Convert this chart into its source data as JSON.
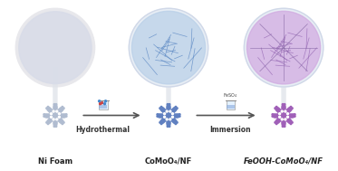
{
  "bg_color": "#f0f0f0",
  "title": "",
  "labels": {
    "label1": "Ni Foam",
    "label2": "CoMoO₄/NF",
    "label3": "FeOOH-CoMoO₄/NF"
  },
  "step_labels": {
    "step1": "Hydrothermal",
    "step2": "Immersion"
  },
  "arrow_color": "#555555",
  "sphere1_color": "#dce8f5",
  "sphere2_color": "#b8cfe8",
  "sphere3_color": "#d4b8e0",
  "foam1_color": "#b0c8e0",
  "foam2_color": "#7090c0",
  "foam3_color": "#b070c0",
  "label_fontsize": 6,
  "step_fontsize": 5.5,
  "label_bold": true
}
